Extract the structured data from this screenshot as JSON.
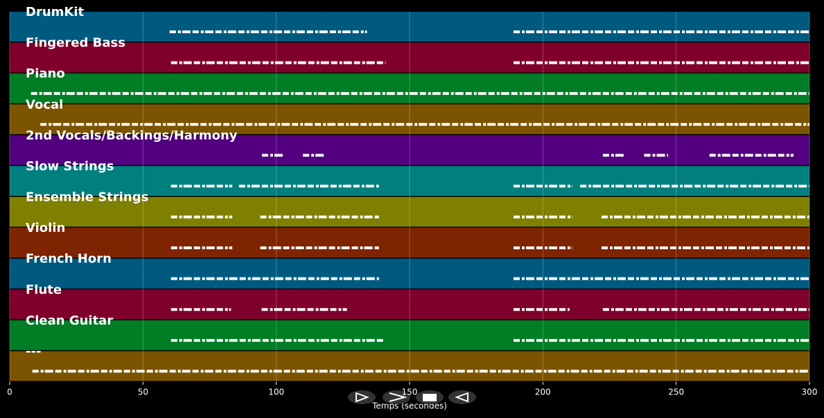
{
  "chart_data": {
    "type": "pianoroll",
    "xlabel": "Temps (secondes)",
    "xlim": [
      0,
      300
    ],
    "xticks": [
      0,
      50,
      100,
      150,
      200,
      250,
      300
    ],
    "grid": true,
    "series": [
      {
        "name": "DrumKit",
        "color": "#005a80",
        "segments": [
          [
            60,
            134
          ],
          [
            189,
            300
          ]
        ]
      },
      {
        "name": "Fingered Bass",
        "color": "#7f002b",
        "segments": [
          [
            60.5,
            141
          ],
          [
            189,
            300
          ]
        ]
      },
      {
        "name": "Piano",
        "color": "#007d25",
        "segments": [
          [
            8,
            300
          ]
        ]
      },
      {
        "name": "Vocal",
        "color": "#7c5400",
        "segments": [
          [
            11.5,
            300
          ]
        ]
      },
      {
        "name": "2nd Vocals/Backings/Harmony",
        "color": "#52007f",
        "segments": [
          [
            94.6,
            103
          ],
          [
            110,
            118.5
          ],
          [
            222.5,
            231
          ],
          [
            238,
            247
          ],
          [
            262.5,
            294
          ]
        ]
      },
      {
        "name": "Slow Strings",
        "color": "#007f7f",
        "segments": [
          [
            60.5,
            83.5
          ],
          [
            86,
            138.5
          ],
          [
            189,
            211
          ],
          [
            214,
            300
          ]
        ]
      },
      {
        "name": "Ensemble Strings",
        "color": "#7f7f00",
        "segments": [
          [
            60.5,
            83.5
          ],
          [
            94,
            138.5
          ],
          [
            189,
            211
          ],
          [
            222,
            300
          ]
        ]
      },
      {
        "name": "Violin",
        "color": "#7f2400",
        "segments": [
          [
            60.5,
            83.5
          ],
          [
            94,
            138.5
          ],
          [
            189,
            211
          ],
          [
            222,
            300
          ]
        ]
      },
      {
        "name": "French Horn",
        "color": "#005a80",
        "segments": [
          [
            60.5,
            138.5
          ],
          [
            189,
            300
          ]
        ]
      },
      {
        "name": "Flute",
        "color": "#7f002b",
        "segments": [
          [
            60.5,
            83
          ],
          [
            94.5,
            126.5
          ],
          [
            189,
            210
          ],
          [
            222.5,
            300
          ]
        ]
      },
      {
        "name": "Clean Guitar",
        "color": "#007d25",
        "segments": [
          [
            60.5,
            140.5
          ],
          [
            189,
            300
          ]
        ]
      },
      {
        "name": "---",
        "color": "#7c5400",
        "segments": [
          [
            8.5,
            300
          ]
        ]
      }
    ]
  }
}
